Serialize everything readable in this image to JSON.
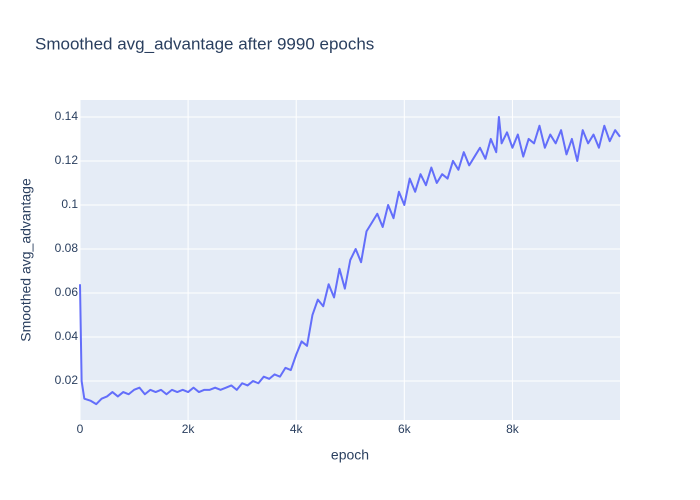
{
  "chart_data": {
    "type": "line",
    "title": "Smoothed avg_advantage after 9990 epochs",
    "x_label": "epoch",
    "y_label": "Smoothed avg_advantage",
    "color": "#636efa",
    "grid": true,
    "xlim": [
      0,
      9990
    ],
    "ylim": [
      0.0023,
      0.1477
    ],
    "xticks": [
      0,
      {
        "value": 2000,
        "label": "2k"
      },
      {
        "value": 4000,
        "label": "4k"
      },
      {
        "value": 6000,
        "label": "6k"
      },
      {
        "value": 8000,
        "label": "8k"
      }
    ],
    "yticks": [
      0.02,
      0.04,
      0.06,
      0.08,
      0.1,
      0.12,
      0.14
    ],
    "x": [
      0,
      30,
      80,
      200,
      300,
      400,
      500,
      600,
      700,
      800,
      900,
      1000,
      1100,
      1200,
      1300,
      1400,
      1500,
      1600,
      1700,
      1800,
      1900,
      2000,
      2100,
      2200,
      2300,
      2400,
      2500,
      2600,
      2700,
      2800,
      2900,
      3000,
      3100,
      3200,
      3300,
      3400,
      3500,
      3600,
      3700,
      3800,
      3900,
      4000,
      4100,
      4200,
      4300,
      4400,
      4500,
      4600,
      4700,
      4800,
      4900,
      5000,
      5100,
      5200,
      5300,
      5400,
      5500,
      5600,
      5700,
      5800,
      5900,
      6000,
      6100,
      6200,
      6300,
      6400,
      6500,
      6600,
      6700,
      6800,
      6900,
      7000,
      7100,
      7200,
      7300,
      7400,
      7500,
      7600,
      7700,
      7750,
      7800,
      7900,
      8000,
      8100,
      8200,
      8300,
      8400,
      8500,
      8600,
      8700,
      8800,
      8900,
      9000,
      9100,
      9200,
      9300,
      9400,
      9500,
      9600,
      9700,
      9800,
      9900,
      9990
    ],
    "values": [
      0.064,
      0.02,
      0.012,
      0.011,
      0.0095,
      0.012,
      0.013,
      0.015,
      0.013,
      0.015,
      0.014,
      0.016,
      0.017,
      0.014,
      0.016,
      0.015,
      0.016,
      0.014,
      0.016,
      0.015,
      0.016,
      0.015,
      0.017,
      0.015,
      0.016,
      0.016,
      0.017,
      0.016,
      0.017,
      0.018,
      0.016,
      0.019,
      0.018,
      0.02,
      0.019,
      0.022,
      0.021,
      0.023,
      0.022,
      0.026,
      0.025,
      0.032,
      0.038,
      0.036,
      0.05,
      0.057,
      0.054,
      0.064,
      0.058,
      0.071,
      0.062,
      0.075,
      0.08,
      0.074,
      0.088,
      0.092,
      0.096,
      0.09,
      0.1,
      0.094,
      0.106,
      0.1,
      0.112,
      0.106,
      0.114,
      0.109,
      0.117,
      0.11,
      0.114,
      0.112,
      0.12,
      0.116,
      0.124,
      0.118,
      0.122,
      0.126,
      0.121,
      0.13,
      0.124,
      0.14,
      0.128,
      0.133,
      0.126,
      0.132,
      0.122,
      0.13,
      0.128,
      0.136,
      0.126,
      0.132,
      0.128,
      0.134,
      0.123,
      0.13,
      0.12,
      0.134,
      0.128,
      0.132,
      0.126,
      0.136,
      0.129,
      0.134,
      0.131
    ]
  }
}
